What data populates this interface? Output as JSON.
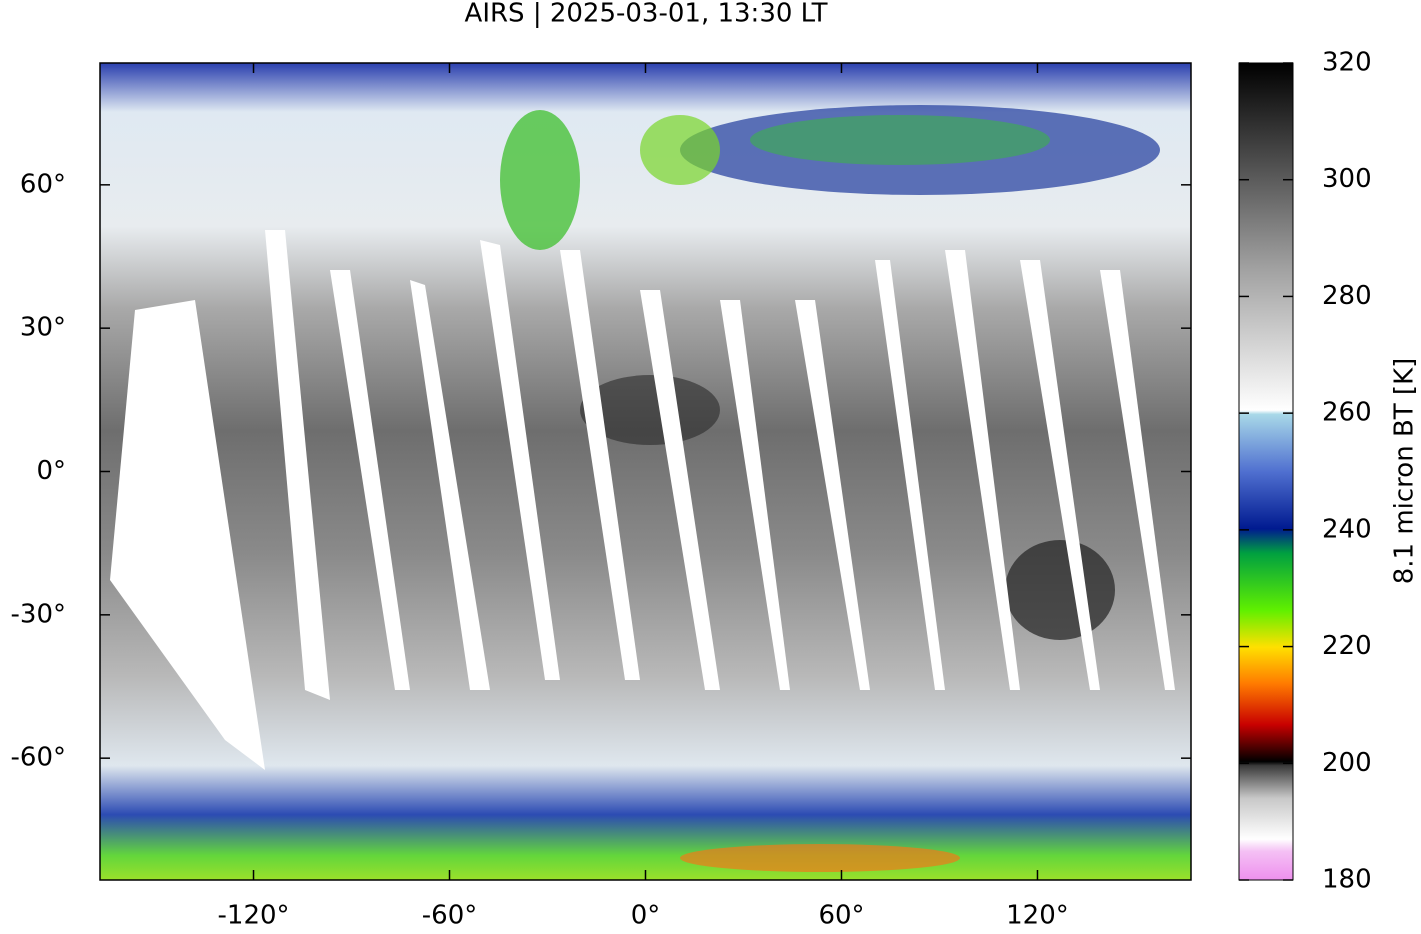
{
  "title": "AIRS | 2025-03-01, 13:30 LT",
  "map": {
    "xlim": [
      -167,
      167
    ],
    "ylim": [
      -85.5,
      85.5
    ],
    "xticks": [
      {
        "value": -120,
        "label": "-120°"
      },
      {
        "value": -60,
        "label": "-60°"
      },
      {
        "value": 0,
        "label": "0°"
      },
      {
        "value": 60,
        "label": "60°"
      },
      {
        "value": 120,
        "label": "120°"
      }
    ],
    "yticks": [
      {
        "value": 60,
        "label": "60°"
      },
      {
        "value": 30,
        "label": "30°"
      },
      {
        "value": 0,
        "label": "0°"
      },
      {
        "value": -30,
        "label": "-30°"
      },
      {
        "value": -60,
        "label": "-60°"
      }
    ]
  },
  "colorbar": {
    "label": "8.1 micron BT [K]",
    "lim": [
      180,
      320
    ],
    "ticks": [
      180,
      200,
      220,
      240,
      260,
      280,
      300,
      320
    ]
  }
}
